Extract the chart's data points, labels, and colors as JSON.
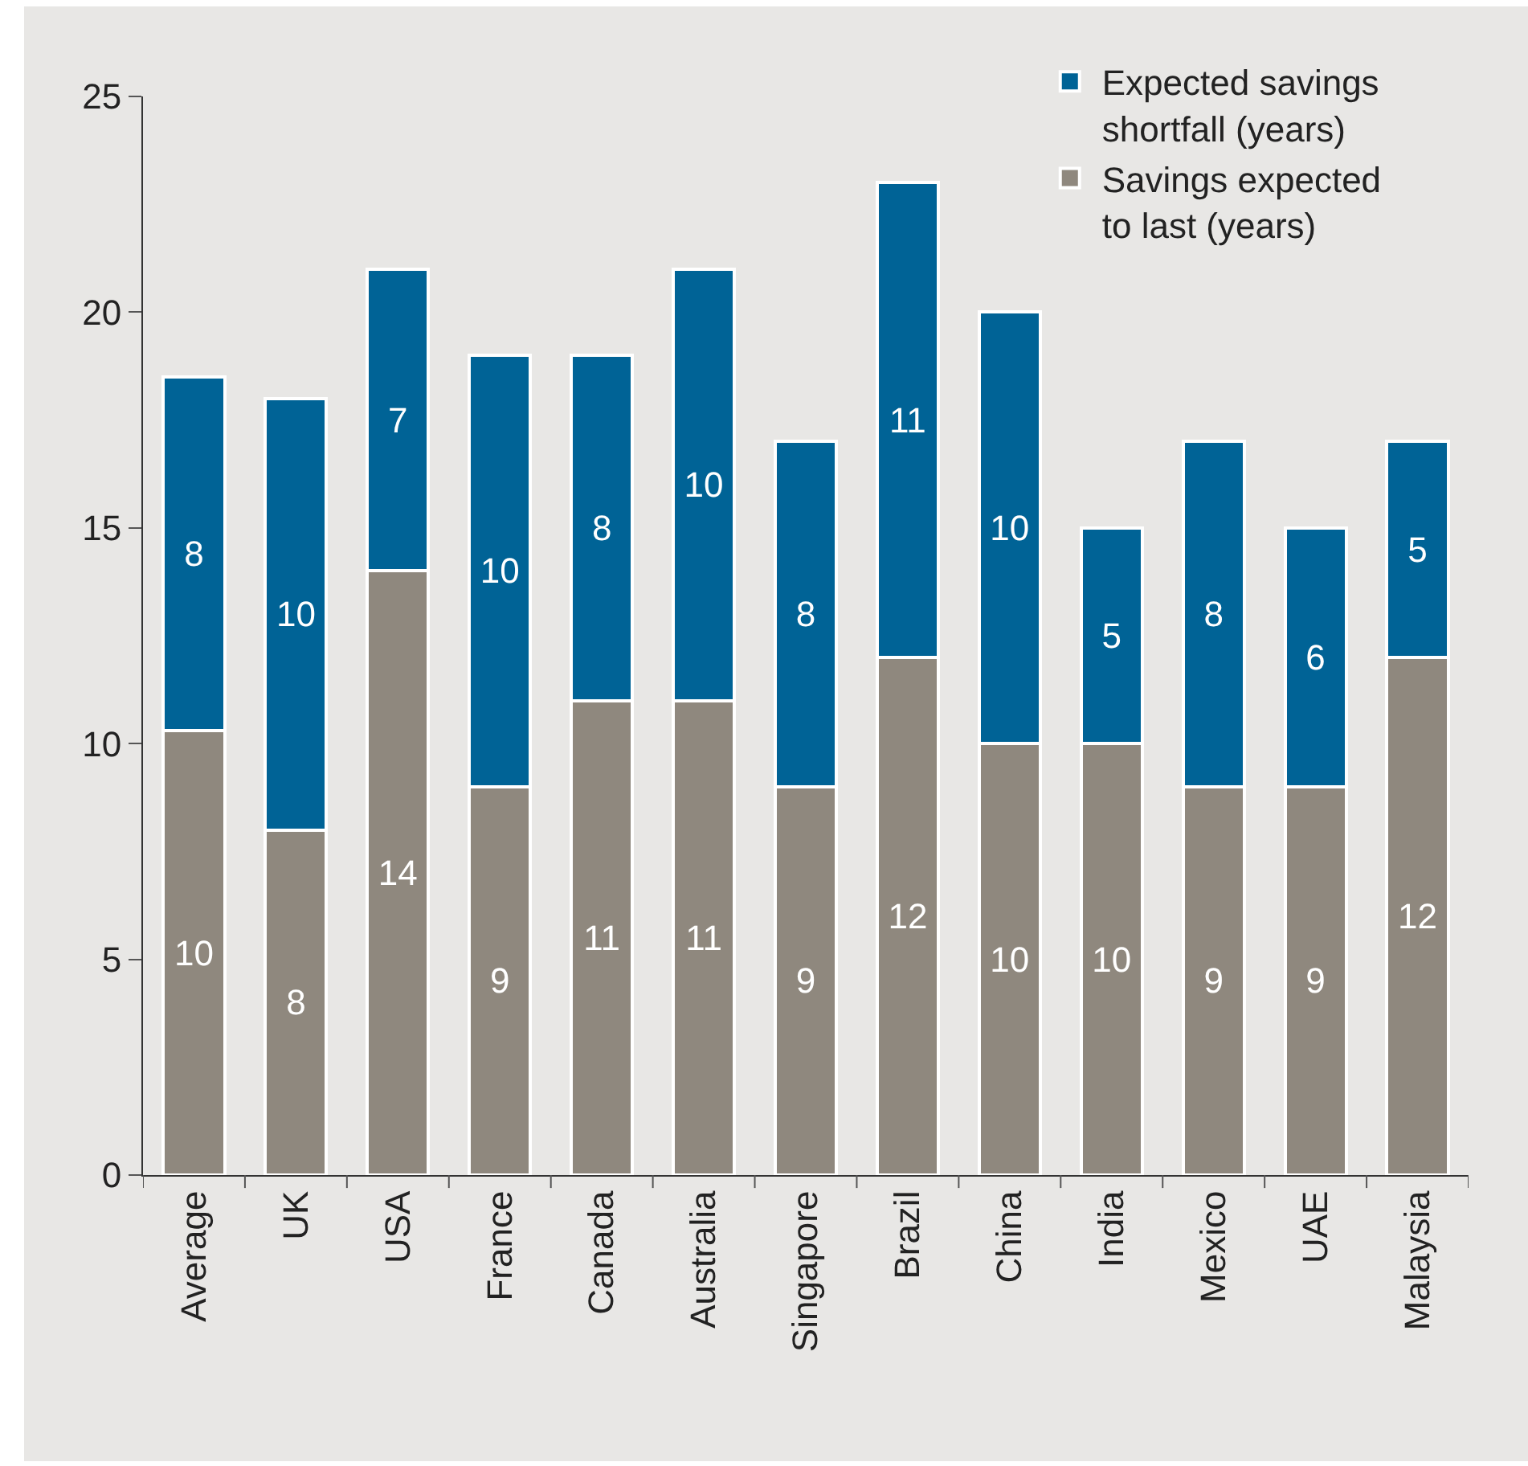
{
  "chart_data": {
    "type": "bar",
    "stacked": true,
    "categories": [
      "Average",
      "UK",
      "USA",
      "France",
      "Canada",
      "Australia",
      "Singapore",
      "Brazil",
      "China",
      "India",
      "Mexico",
      "UAE",
      "Malaysia"
    ],
    "ylim": [
      0,
      25
    ],
    "yticks": [
      0,
      5,
      10,
      15,
      20,
      25
    ],
    "grid": false,
    "legend": "top right",
    "series": [
      {
        "name": "Savings expected to last (years)",
        "color": "#8f887e",
        "values": [
          10.3,
          8,
          14,
          9,
          11,
          11,
          9,
          12,
          10,
          10,
          9,
          9,
          12
        ],
        "value_labels": [
          "10",
          "8",
          "14",
          "9",
          "11",
          "11",
          "9",
          "12",
          "10",
          "10",
          "9",
          "9",
          "12"
        ]
      },
      {
        "name": "Expected savings shortfall (years)",
        "color": "#006396",
        "values": [
          8.2,
          10,
          7,
          10,
          8,
          10,
          8,
          11,
          10,
          5,
          8,
          6,
          5
        ],
        "value_labels": [
          "8",
          "10",
          "7",
          "10",
          "8",
          "10",
          "8",
          "11",
          "10",
          "5",
          "8",
          "6",
          "5"
        ]
      }
    ]
  }
}
